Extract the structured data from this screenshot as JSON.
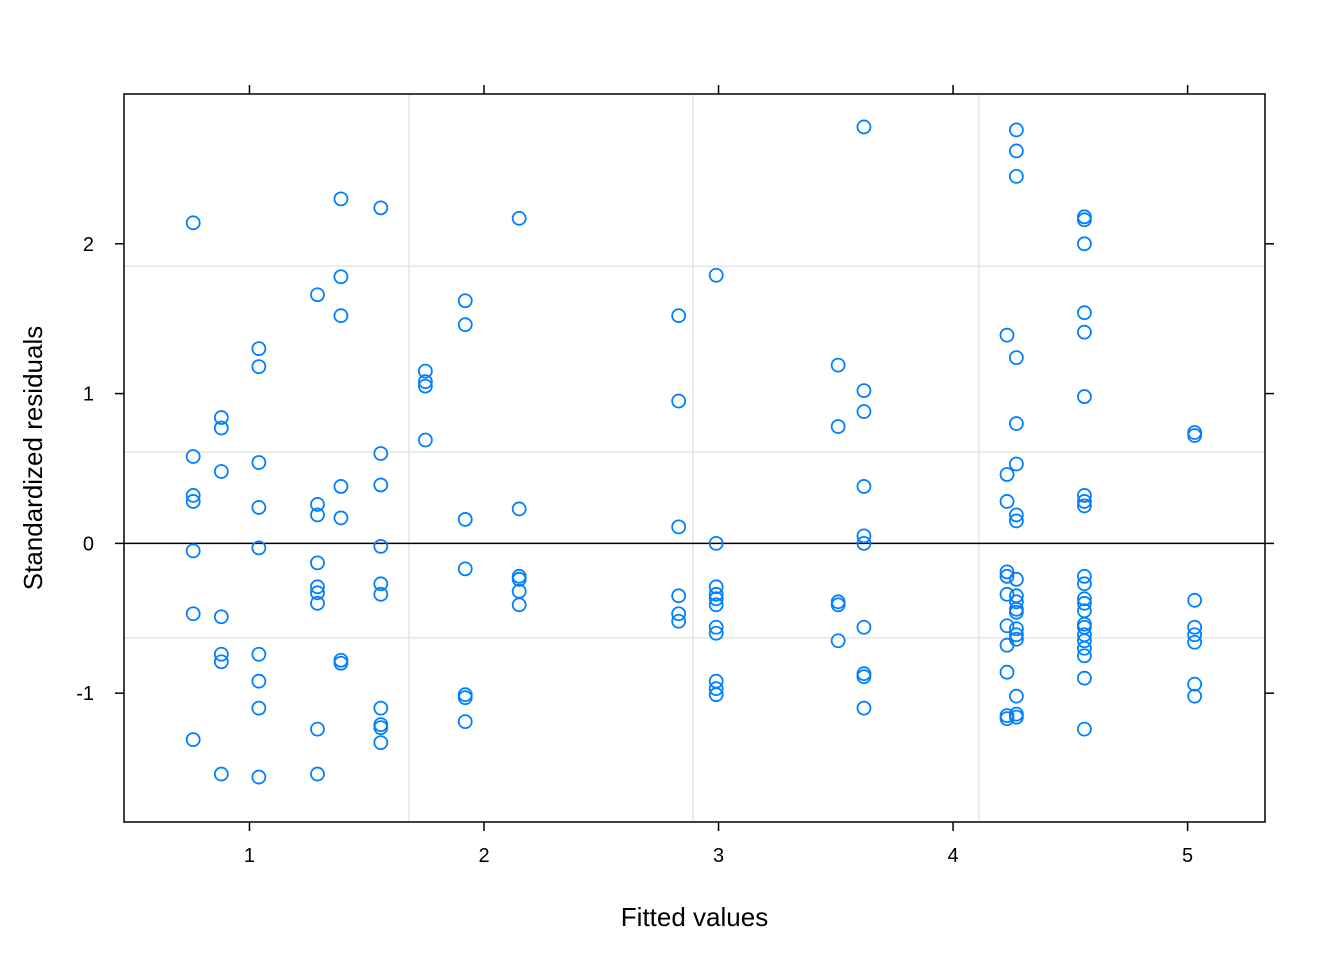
{
  "chart_data": {
    "type": "scatter",
    "xlabel": "Fitted values",
    "ylabel": "Standardized residuals",
    "xlim": [
      0.465,
      5.33
    ],
    "ylim": [
      -1.86,
      3.0
    ],
    "xticks": [
      {
        "value": 1,
        "label": "1"
      },
      {
        "value": 2,
        "label": "2"
      },
      {
        "value": 3,
        "label": "3"
      },
      {
        "value": 4,
        "label": "4"
      },
      {
        "value": 5,
        "label": "5"
      }
    ],
    "yticks": [
      {
        "value": -1,
        "label": "-1"
      },
      {
        "value": 0,
        "label": "0"
      },
      {
        "value": 1,
        "label": "1"
      },
      {
        "value": 2,
        "label": "2"
      }
    ],
    "grid_x": [
      1.68,
      2.89,
      4.11
    ],
    "grid_y": [
      -0.63,
      0.61,
      1.85
    ],
    "reference_line_y": 0,
    "grid": true,
    "colors": {
      "points": "#0080ff",
      "grid": "#e6e6e6",
      "axis": "#000000",
      "reference_line": "#000000"
    },
    "marker": "open-circle",
    "points": [
      {
        "x": 0.76,
        "y": 2.14
      },
      {
        "x": 0.76,
        "y": 0.58
      },
      {
        "x": 0.76,
        "y": 0.32
      },
      {
        "x": 0.76,
        "y": 0.28
      },
      {
        "x": 0.76,
        "y": -0.05
      },
      {
        "x": 0.76,
        "y": -0.47
      },
      {
        "x": 0.76,
        "y": -1.31
      },
      {
        "x": 0.88,
        "y": 0.84
      },
      {
        "x": 0.88,
        "y": 0.77
      },
      {
        "x": 0.88,
        "y": 0.48
      },
      {
        "x": 0.88,
        "y": -0.49
      },
      {
        "x": 0.88,
        "y": -0.74
      },
      {
        "x": 0.88,
        "y": -0.79
      },
      {
        "x": 0.88,
        "y": -1.54
      },
      {
        "x": 1.04,
        "y": 1.3
      },
      {
        "x": 1.04,
        "y": 1.18
      },
      {
        "x": 1.04,
        "y": 0.54
      },
      {
        "x": 1.04,
        "y": 0.24
      },
      {
        "x": 1.04,
        "y": -0.03
      },
      {
        "x": 1.04,
        "y": -0.74
      },
      {
        "x": 1.04,
        "y": -0.92
      },
      {
        "x": 1.04,
        "y": -1.1
      },
      {
        "x": 1.04,
        "y": -1.56
      },
      {
        "x": 1.29,
        "y": 1.66
      },
      {
        "x": 1.29,
        "y": 0.26
      },
      {
        "x": 1.29,
        "y": 0.19
      },
      {
        "x": 1.29,
        "y": -0.13
      },
      {
        "x": 1.29,
        "y": -0.29
      },
      {
        "x": 1.29,
        "y": -0.33
      },
      {
        "x": 1.29,
        "y": -0.4
      },
      {
        "x": 1.29,
        "y": -1.24
      },
      {
        "x": 1.29,
        "y": -1.54
      },
      {
        "x": 1.39,
        "y": 2.3
      },
      {
        "x": 1.39,
        "y": 1.78
      },
      {
        "x": 1.39,
        "y": 1.52
      },
      {
        "x": 1.39,
        "y": 0.38
      },
      {
        "x": 1.39,
        "y": 0.17
      },
      {
        "x": 1.39,
        "y": -0.78
      },
      {
        "x": 1.39,
        "y": -0.8
      },
      {
        "x": 1.56,
        "y": 2.24
      },
      {
        "x": 1.56,
        "y": 0.6
      },
      {
        "x": 1.56,
        "y": 0.39
      },
      {
        "x": 1.56,
        "y": -0.02
      },
      {
        "x": 1.56,
        "y": -0.27
      },
      {
        "x": 1.56,
        "y": -0.34
      },
      {
        "x": 1.56,
        "y": -1.1
      },
      {
        "x": 1.56,
        "y": -1.21
      },
      {
        "x": 1.56,
        "y": -1.23
      },
      {
        "x": 1.56,
        "y": -1.33
      },
      {
        "x": 1.75,
        "y": 1.15
      },
      {
        "x": 1.75,
        "y": 1.08
      },
      {
        "x": 1.75,
        "y": 1.05
      },
      {
        "x": 1.75,
        "y": 0.69
      },
      {
        "x": 1.92,
        "y": 1.62
      },
      {
        "x": 1.92,
        "y": 1.46
      },
      {
        "x": 1.92,
        "y": 0.16
      },
      {
        "x": 1.92,
        "y": -0.17
      },
      {
        "x": 1.92,
        "y": -1.01
      },
      {
        "x": 1.92,
        "y": -1.03
      },
      {
        "x": 1.92,
        "y": -1.19
      },
      {
        "x": 2.15,
        "y": 2.17
      },
      {
        "x": 2.15,
        "y": 0.23
      },
      {
        "x": 2.15,
        "y": -0.22
      },
      {
        "x": 2.15,
        "y": -0.24
      },
      {
        "x": 2.15,
        "y": -0.32
      },
      {
        "x": 2.15,
        "y": -0.41
      },
      {
        "x": 2.83,
        "y": 1.52
      },
      {
        "x": 2.83,
        "y": 0.95
      },
      {
        "x": 2.83,
        "y": 0.11
      },
      {
        "x": 2.83,
        "y": -0.35
      },
      {
        "x": 2.83,
        "y": -0.47
      },
      {
        "x": 2.83,
        "y": -0.52
      },
      {
        "x": 2.99,
        "y": 1.79
      },
      {
        "x": 2.99,
        "y": 0.0
      },
      {
        "x": 2.99,
        "y": -0.29
      },
      {
        "x": 2.99,
        "y": -0.34
      },
      {
        "x": 2.99,
        "y": -0.37
      },
      {
        "x": 2.99,
        "y": -0.41
      },
      {
        "x": 2.99,
        "y": -0.56
      },
      {
        "x": 2.99,
        "y": -0.6
      },
      {
        "x": 2.99,
        "y": -0.92
      },
      {
        "x": 2.99,
        "y": -0.97
      },
      {
        "x": 2.99,
        "y": -1.01
      },
      {
        "x": 3.51,
        "y": 1.19
      },
      {
        "x": 3.51,
        "y": 0.78
      },
      {
        "x": 3.51,
        "y": -0.39
      },
      {
        "x": 3.51,
        "y": -0.41
      },
      {
        "x": 3.51,
        "y": -0.65
      },
      {
        "x": 3.62,
        "y": 2.78
      },
      {
        "x": 3.62,
        "y": 1.02
      },
      {
        "x": 3.62,
        "y": 0.88
      },
      {
        "x": 3.62,
        "y": 0.38
      },
      {
        "x": 3.62,
        "y": 0.05
      },
      {
        "x": 3.62,
        "y": 0.0
      },
      {
        "x": 3.62,
        "y": -0.56
      },
      {
        "x": 3.62,
        "y": -0.87
      },
      {
        "x": 3.62,
        "y": -0.89
      },
      {
        "x": 3.62,
        "y": -1.1
      },
      {
        "x": 4.23,
        "y": 1.39
      },
      {
        "x": 4.23,
        "y": 0.46
      },
      {
        "x": 4.23,
        "y": 0.28
      },
      {
        "x": 4.23,
        "y": -0.19
      },
      {
        "x": 4.23,
        "y": -0.22
      },
      {
        "x": 4.23,
        "y": -0.34
      },
      {
        "x": 4.23,
        "y": -0.55
      },
      {
        "x": 4.23,
        "y": -0.68
      },
      {
        "x": 4.23,
        "y": -0.86
      },
      {
        "x": 4.23,
        "y": -1.15
      },
      {
        "x": 4.23,
        "y": -1.17
      },
      {
        "x": 4.27,
        "y": 2.76
      },
      {
        "x": 4.27,
        "y": 2.62
      },
      {
        "x": 4.27,
        "y": 2.45
      },
      {
        "x": 4.27,
        "y": 1.24
      },
      {
        "x": 4.27,
        "y": 0.8
      },
      {
        "x": 4.27,
        "y": 0.53
      },
      {
        "x": 4.27,
        "y": 0.19
      },
      {
        "x": 4.27,
        "y": 0.15
      },
      {
        "x": 4.27,
        "y": -0.24
      },
      {
        "x": 4.27,
        "y": -0.35
      },
      {
        "x": 4.27,
        "y": -0.39
      },
      {
        "x": 4.27,
        "y": -0.44
      },
      {
        "x": 4.27,
        "y": -0.46
      },
      {
        "x": 4.27,
        "y": -0.57
      },
      {
        "x": 4.27,
        "y": -0.61
      },
      {
        "x": 4.27,
        "y": -0.64
      },
      {
        "x": 4.27,
        "y": -1.02
      },
      {
        "x": 4.27,
        "y": -1.14
      },
      {
        "x": 4.27,
        "y": -1.16
      },
      {
        "x": 4.56,
        "y": 2.18
      },
      {
        "x": 4.56,
        "y": 2.16
      },
      {
        "x": 4.56,
        "y": 2.0
      },
      {
        "x": 4.56,
        "y": 1.54
      },
      {
        "x": 4.56,
        "y": 1.41
      },
      {
        "x": 4.56,
        "y": 0.98
      },
      {
        "x": 4.56,
        "y": 0.32
      },
      {
        "x": 4.56,
        "y": 0.28
      },
      {
        "x": 4.56,
        "y": 0.25
      },
      {
        "x": 4.56,
        "y": -0.22
      },
      {
        "x": 4.56,
        "y": -0.27
      },
      {
        "x": 4.56,
        "y": -0.37
      },
      {
        "x": 4.56,
        "y": -0.4
      },
      {
        "x": 4.56,
        "y": -0.45
      },
      {
        "x": 4.56,
        "y": -0.54
      },
      {
        "x": 4.56,
        "y": -0.56
      },
      {
        "x": 4.56,
        "y": -0.61
      },
      {
        "x": 4.56,
        "y": -0.65
      },
      {
        "x": 4.56,
        "y": -0.7
      },
      {
        "x": 4.56,
        "y": -0.75
      },
      {
        "x": 4.56,
        "y": -0.9
      },
      {
        "x": 4.56,
        "y": -1.24
      },
      {
        "x": 5.03,
        "y": 0.74
      },
      {
        "x": 5.03,
        "y": 0.72
      },
      {
        "x": 5.03,
        "y": -0.38
      },
      {
        "x": 5.03,
        "y": -0.56
      },
      {
        "x": 5.03,
        "y": -0.61
      },
      {
        "x": 5.03,
        "y": -0.66
      },
      {
        "x": 5.03,
        "y": -0.94
      },
      {
        "x": 5.03,
        "y": -1.02
      }
    ]
  }
}
